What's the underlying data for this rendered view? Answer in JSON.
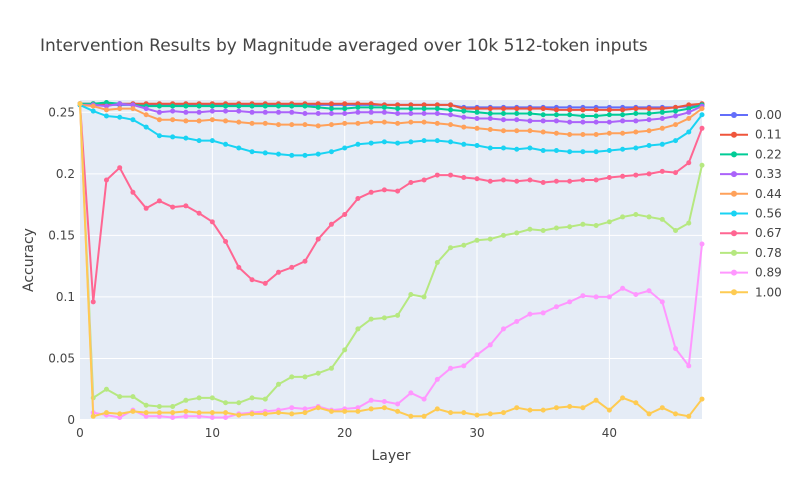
{
  "chart_data": {
    "type": "line",
    "title": "Intervention Results by Magnitude averaged over 10k 512-token inputs",
    "xlabel": "Layer",
    "ylabel": "Accuracy",
    "xlim": [
      0,
      47
    ],
    "ylim": [
      0,
      0.26
    ],
    "xticks": [
      0,
      10,
      20,
      30,
      40
    ],
    "xtick_labels": [
      "0",
      "10",
      "20",
      "30",
      "40"
    ],
    "yticks": [
      0,
      0.05,
      0.1,
      0.15,
      0.2,
      0.25
    ],
    "ytick_labels": [
      "0",
      "0.05",
      "0.1",
      "0.15",
      "0.2",
      "0.25"
    ],
    "grid": true,
    "legend_position": "right",
    "x": [
      0,
      1,
      2,
      3,
      4,
      5,
      6,
      7,
      8,
      9,
      10,
      11,
      12,
      13,
      14,
      15,
      16,
      17,
      18,
      19,
      20,
      21,
      22,
      23,
      24,
      25,
      26,
      27,
      28,
      29,
      30,
      31,
      32,
      33,
      34,
      35,
      36,
      37,
      38,
      39,
      40,
      41,
      42,
      43,
      44,
      45,
      46,
      47
    ],
    "series": [
      {
        "name": "0.00",
        "color": "#636efa",
        "values": [
          0.257,
          0.256,
          0.256,
          0.256,
          0.256,
          0.256,
          0.256,
          0.256,
          0.256,
          0.256,
          0.256,
          0.256,
          0.256,
          0.256,
          0.256,
          0.256,
          0.256,
          0.256,
          0.256,
          0.256,
          0.256,
          0.256,
          0.256,
          0.256,
          0.256,
          0.256,
          0.256,
          0.256,
          0.256,
          0.254,
          0.254,
          0.254,
          0.254,
          0.254,
          0.254,
          0.254,
          0.254,
          0.254,
          0.254,
          0.254,
          0.254,
          0.254,
          0.254,
          0.254,
          0.254,
          0.254,
          0.255,
          0.256
        ]
      },
      {
        "name": "0.11",
        "color": "#ef553b",
        "values": [
          0.257,
          0.257,
          0.257,
          0.257,
          0.257,
          0.257,
          0.257,
          0.257,
          0.257,
          0.257,
          0.257,
          0.257,
          0.257,
          0.257,
          0.257,
          0.257,
          0.257,
          0.257,
          0.257,
          0.257,
          0.257,
          0.257,
          0.257,
          0.256,
          0.256,
          0.256,
          0.256,
          0.256,
          0.256,
          0.253,
          0.253,
          0.253,
          0.253,
          0.253,
          0.253,
          0.253,
          0.252,
          0.252,
          0.252,
          0.252,
          0.252,
          0.252,
          0.253,
          0.253,
          0.253,
          0.254,
          0.256,
          0.257
        ]
      },
      {
        "name": "0.22",
        "color": "#00cc96",
        "values": [
          0.257,
          0.257,
          0.258,
          0.257,
          0.256,
          0.255,
          0.255,
          0.255,
          0.255,
          0.255,
          0.255,
          0.255,
          0.255,
          0.255,
          0.255,
          0.255,
          0.255,
          0.255,
          0.254,
          0.253,
          0.253,
          0.254,
          0.254,
          0.254,
          0.253,
          0.253,
          0.253,
          0.253,
          0.252,
          0.251,
          0.25,
          0.249,
          0.249,
          0.249,
          0.249,
          0.248,
          0.248,
          0.248,
          0.247,
          0.247,
          0.248,
          0.248,
          0.249,
          0.249,
          0.25,
          0.251,
          0.253,
          0.256
        ]
      },
      {
        "name": "0.33",
        "color": "#ab63fa",
        "values": [
          0.256,
          0.256,
          0.255,
          0.257,
          0.256,
          0.253,
          0.25,
          0.251,
          0.25,
          0.25,
          0.251,
          0.251,
          0.251,
          0.25,
          0.25,
          0.25,
          0.25,
          0.249,
          0.249,
          0.249,
          0.249,
          0.25,
          0.25,
          0.25,
          0.249,
          0.249,
          0.249,
          0.249,
          0.248,
          0.246,
          0.245,
          0.245,
          0.244,
          0.244,
          0.243,
          0.243,
          0.243,
          0.242,
          0.242,
          0.242,
          0.242,
          0.243,
          0.243,
          0.244,
          0.245,
          0.247,
          0.25,
          0.255
        ]
      },
      {
        "name": "0.44",
        "color": "#ffa15a",
        "values": [
          0.256,
          0.255,
          0.252,
          0.253,
          0.253,
          0.248,
          0.244,
          0.244,
          0.243,
          0.243,
          0.244,
          0.243,
          0.242,
          0.241,
          0.241,
          0.24,
          0.24,
          0.24,
          0.239,
          0.24,
          0.241,
          0.241,
          0.242,
          0.242,
          0.241,
          0.242,
          0.242,
          0.241,
          0.24,
          0.238,
          0.237,
          0.236,
          0.235,
          0.235,
          0.235,
          0.234,
          0.233,
          0.232,
          0.232,
          0.232,
          0.233,
          0.233,
          0.234,
          0.235,
          0.237,
          0.24,
          0.245,
          0.253
        ]
      },
      {
        "name": "0.56",
        "color": "#19d3f3",
        "values": [
          0.256,
          0.251,
          0.247,
          0.246,
          0.244,
          0.238,
          0.231,
          0.23,
          0.229,
          0.227,
          0.227,
          0.224,
          0.221,
          0.218,
          0.217,
          0.216,
          0.215,
          0.215,
          0.216,
          0.218,
          0.221,
          0.224,
          0.225,
          0.226,
          0.225,
          0.226,
          0.227,
          0.227,
          0.226,
          0.224,
          0.223,
          0.221,
          0.221,
          0.22,
          0.221,
          0.219,
          0.219,
          0.218,
          0.218,
          0.218,
          0.219,
          0.22,
          0.221,
          0.223,
          0.224,
          0.227,
          0.234,
          0.248
        ]
      },
      {
        "name": "0.67",
        "color": "#ff6692",
        "values": [
          0.257,
          0.096,
          0.195,
          0.205,
          0.185,
          0.172,
          0.178,
          0.173,
          0.174,
          0.168,
          0.161,
          0.145,
          0.124,
          0.114,
          0.111,
          0.12,
          0.124,
          0.129,
          0.147,
          0.159,
          0.167,
          0.18,
          0.185,
          0.187,
          0.186,
          0.193,
          0.195,
          0.199,
          0.199,
          0.197,
          0.196,
          0.194,
          0.195,
          0.194,
          0.195,
          0.193,
          0.194,
          0.194,
          0.195,
          0.195,
          0.197,
          0.198,
          0.199,
          0.2,
          0.202,
          0.201,
          0.209,
          0.237
        ]
      },
      {
        "name": "0.78",
        "color": "#b6e880",
        "values": [
          0.257,
          0.018,
          0.025,
          0.019,
          0.019,
          0.012,
          0.011,
          0.011,
          0.016,
          0.018,
          0.018,
          0.014,
          0.014,
          0.018,
          0.017,
          0.029,
          0.035,
          0.035,
          0.038,
          0.042,
          0.057,
          0.074,
          0.082,
          0.083,
          0.085,
          0.102,
          0.1,
          0.128,
          0.14,
          0.142,
          0.146,
          0.147,
          0.15,
          0.152,
          0.155,
          0.154,
          0.156,
          0.157,
          0.159,
          0.158,
          0.161,
          0.165,
          0.167,
          0.165,
          0.163,
          0.154,
          0.16,
          0.207
        ]
      },
      {
        "name": "0.89",
        "color": "#ff97ff",
        "values": [
          0.257,
          0.006,
          0.004,
          0.002,
          0.008,
          0.003,
          0.003,
          0.002,
          0.003,
          0.003,
          0.002,
          0.002,
          0.005,
          0.006,
          0.007,
          0.008,
          0.01,
          0.009,
          0.011,
          0.008,
          0.009,
          0.01,
          0.016,
          0.015,
          0.013,
          0.022,
          0.017,
          0.033,
          0.042,
          0.044,
          0.053,
          0.061,
          0.074,
          0.08,
          0.086,
          0.087,
          0.092,
          0.096,
          0.101,
          0.1,
          0.1,
          0.107,
          0.102,
          0.105,
          0.096,
          0.058,
          0.044,
          0.143
        ]
      },
      {
        "name": "1.00",
        "color": "#fecb52",
        "values": [
          0.257,
          0.003,
          0.006,
          0.005,
          0.007,
          0.006,
          0.006,
          0.006,
          0.007,
          0.006,
          0.006,
          0.006,
          0.004,
          0.005,
          0.005,
          0.006,
          0.005,
          0.006,
          0.01,
          0.007,
          0.007,
          0.007,
          0.009,
          0.01,
          0.007,
          0.003,
          0.003,
          0.009,
          0.006,
          0.006,
          0.004,
          0.005,
          0.006,
          0.01,
          0.008,
          0.008,
          0.01,
          0.011,
          0.01,
          0.016,
          0.008,
          0.018,
          0.014,
          0.005,
          0.01,
          0.005,
          0.003,
          0.017
        ]
      }
    ]
  }
}
